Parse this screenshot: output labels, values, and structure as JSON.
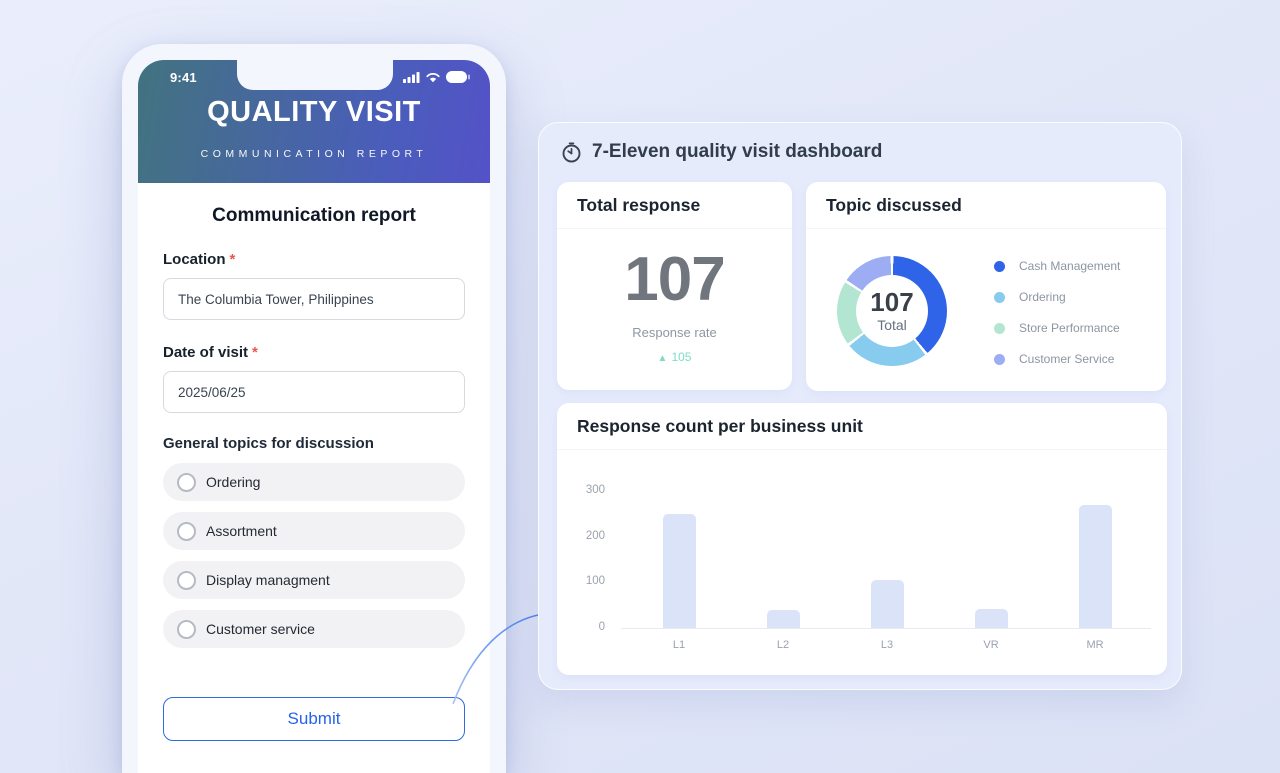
{
  "phone": {
    "status_bar": {
      "time": "9:41"
    },
    "header": {
      "title": "QUALITY VISIT",
      "subtitle": "COMMUNICATION REPORT"
    },
    "form": {
      "heading": "Communication report",
      "location": {
        "label": "Location",
        "required_mark": "*",
        "value": "The Columbia Tower, Philippines"
      },
      "date": {
        "label": "Date of visit",
        "required_mark": "*",
        "value": "2025/06/25"
      },
      "topics": {
        "label": "General topics for discussion",
        "options": [
          "Ordering",
          "Assortment",
          "Display managment",
          "Customer service"
        ]
      },
      "submit_label": "Submit"
    }
  },
  "dashboard": {
    "title": "7-Eleven quality visit dashboard",
    "cards": {
      "total_response": {
        "title": "Total response",
        "value": "107",
        "caption": "Response rate",
        "delta": "105",
        "delta_color": "#7edcc6"
      },
      "topic_discussed": {
        "title": "Topic discussed",
        "center_value": "107",
        "center_label": "Total"
      },
      "response_count": {
        "title": "Response count per business unit"
      }
    }
  },
  "chart_data": [
    {
      "type": "pie",
      "title": "Topic discussed",
      "labels": [
        "Cash Management",
        "Ordering",
        "Store Performance",
        "Customer Service"
      ],
      "values": [
        42,
        27,
        21,
        17
      ],
      "total": 107,
      "colors": [
        "#2f63e8",
        "#87cbef",
        "#b2e6d2",
        "#9cadf3"
      ],
      "center_text": "107 Total",
      "legend_position": "right"
    },
    {
      "type": "bar",
      "title": "Response count per business unit",
      "categories": [
        "L1",
        "L2",
        "L3",
        "VR",
        "MR"
      ],
      "values": [
        250,
        40,
        105,
        42,
        270
      ],
      "ylim": [
        0,
        300
      ],
      "yticks": [
        0,
        100,
        200,
        300
      ],
      "bar_color": "#dbe3f8",
      "grid": false,
      "xlabel": "",
      "ylabel": ""
    }
  ]
}
